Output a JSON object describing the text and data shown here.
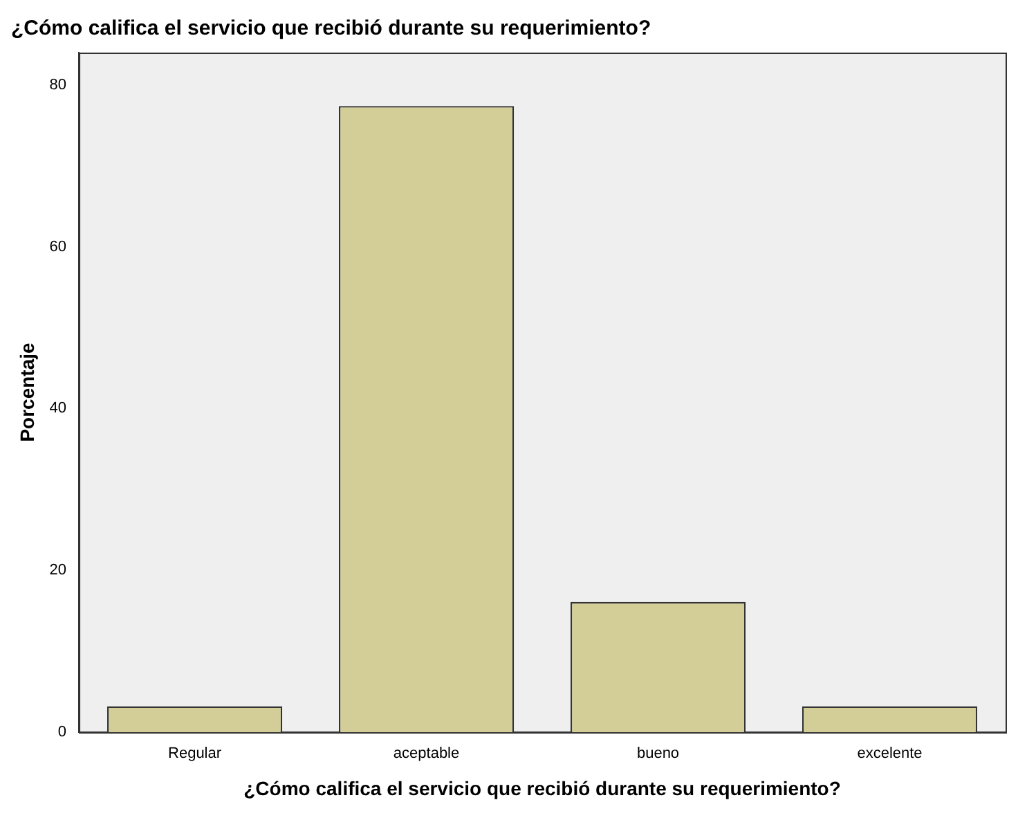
{
  "chart_data": {
    "type": "bar",
    "title": "¿Cómo califica el servicio que recibió durante su requerimiento?",
    "xlabel": "¿Cómo califica el servicio que recibió durante su requerimiento?",
    "ylabel": "Porcentaje",
    "categories": [
      "Regular",
      "aceptable",
      "bueno",
      "excelente"
    ],
    "values": [
      3.2,
      77.4,
      16.1,
      3.2
    ],
    "color": "#d3ce97",
    "ylim": [
      0,
      84
    ],
    "yticks": [
      0,
      20,
      40,
      60,
      80
    ],
    "grid": false,
    "legend": false
  }
}
